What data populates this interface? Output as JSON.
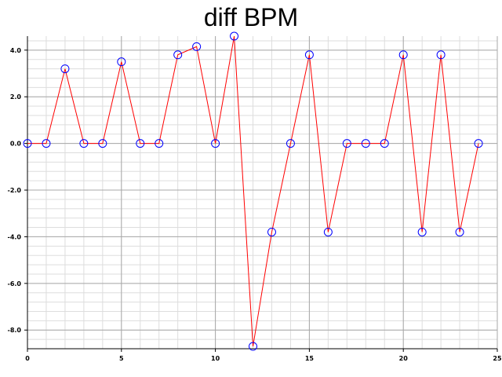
{
  "chart_data": {
    "type": "line",
    "title": "diff BPM",
    "xlabel": "",
    "ylabel": "",
    "xlim": [
      0,
      25
    ],
    "ylim": [
      -8.8,
      4.6
    ],
    "x_ticks": [
      0,
      5,
      10,
      15,
      20,
      25
    ],
    "x_tick_labels": [
      "0",
      "5",
      "10",
      "15",
      "20",
      "25"
    ],
    "y_ticks": [
      4,
      2,
      0,
      -2,
      -4,
      -6,
      -8
    ],
    "y_tick_labels": [
      "4.0",
      "2.0",
      "0.0",
      "-2.0",
      "-4.0",
      "-6.0",
      "-8.0"
    ],
    "grid": true,
    "line_color": "#ff0000",
    "marker_color": "#0000ff",
    "marker": "open-circle",
    "x": [
      0,
      1,
      2,
      3,
      4,
      5,
      6,
      7,
      8,
      9,
      10,
      11,
      12,
      13,
      14,
      15,
      16,
      17,
      18,
      19,
      20,
      21,
      22,
      23,
      24
    ],
    "y": [
      0,
      0,
      3.2,
      0,
      0,
      3.5,
      0,
      0,
      3.8,
      4.15,
      0,
      4.6,
      -8.7,
      -3.8,
      0,
      3.8,
      -3.8,
      0,
      0,
      0,
      3.8,
      -3.8,
      3.8,
      -3.8,
      0
    ]
  }
}
